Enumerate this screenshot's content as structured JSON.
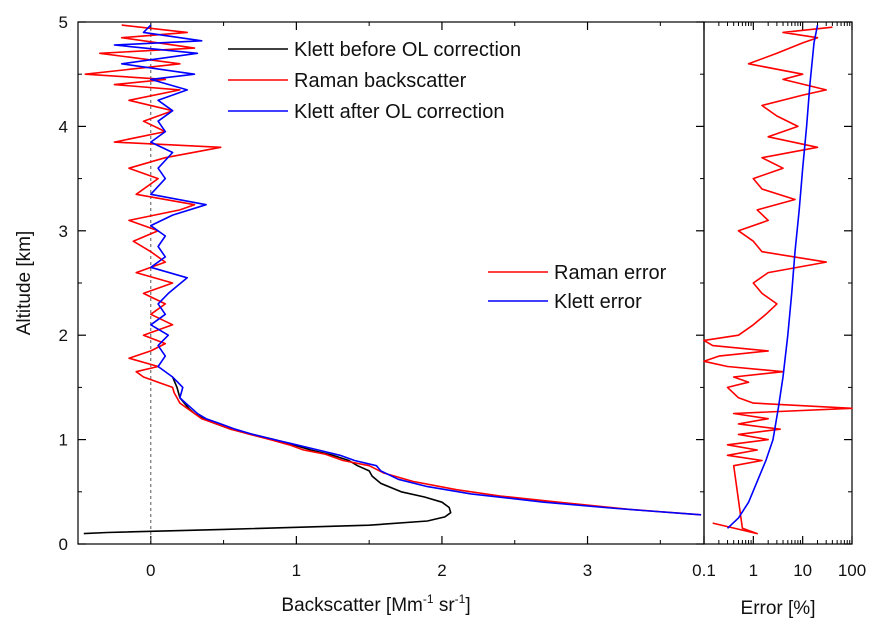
{
  "chart_data": [
    {
      "type": "line",
      "panel": "left",
      "xlabel": "Backscatter [Mm-1 sr-1]",
      "xlabel_parts": {
        "base": "Backscatter [Mm",
        "sup1": "-1",
        "mid": " sr",
        "sup2": "-1",
        "end": "]"
      },
      "ylabel": "Altitude [km]",
      "xlim": [
        -0.5,
        3.8
      ],
      "ylim": [
        0,
        5
      ],
      "x_ticks": [
        0,
        1,
        2,
        3
      ],
      "x_tick_labels": [
        "0",
        "1",
        "2",
        "3"
      ],
      "y_ticks": [
        0,
        1,
        2,
        3,
        4,
        5
      ],
      "y_tick_labels": [
        "0",
        "1",
        "2",
        "3",
        "4",
        "5"
      ],
      "zero_line": "dashed",
      "legend_position": "top-right",
      "series": [
        {
          "name": "Klett before OL correction",
          "color": "#000000",
          "points": [
            [
              -0.46,
              0.1
            ],
            [
              -0.3,
              0.11
            ],
            [
              0.5,
              0.14
            ],
            [
              1.5,
              0.18
            ],
            [
              1.9,
              0.22
            ],
            [
              2.02,
              0.26
            ],
            [
              2.06,
              0.3
            ],
            [
              2.05,
              0.35
            ],
            [
              2.0,
              0.4
            ],
            [
              1.88,
              0.45
            ],
            [
              1.72,
              0.5
            ],
            [
              1.58,
              0.58
            ],
            [
              1.52,
              0.65
            ],
            [
              1.5,
              0.7
            ],
            [
              1.42,
              0.75
            ],
            [
              1.36,
              0.8
            ],
            [
              1.25,
              0.85
            ],
            [
              1.1,
              0.9
            ],
            [
              0.98,
              0.95
            ],
            [
              0.85,
              1.0
            ],
            [
              0.7,
              1.05
            ],
            [
              0.55,
              1.1
            ],
            [
              0.45,
              1.15
            ],
            [
              0.36,
              1.2
            ],
            [
              0.3,
              1.25
            ],
            [
              0.26,
              1.3
            ],
            [
              0.23,
              1.35
            ],
            [
              0.2,
              1.4
            ],
            [
              0.18,
              1.5
            ],
            [
              0.15,
              1.6
            ]
          ]
        },
        {
          "name": "Raman backscatter",
          "color": "#ff0000",
          "points": [
            [
              3.78,
              0.28
            ],
            [
              3.3,
              0.33
            ],
            [
              2.8,
              0.4
            ],
            [
              2.4,
              0.46
            ],
            [
              2.1,
              0.52
            ],
            [
              1.8,
              0.6
            ],
            [
              1.6,
              0.68
            ],
            [
              1.5,
              0.75
            ],
            [
              1.32,
              0.8
            ],
            [
              1.2,
              0.86
            ],
            [
              1.05,
              0.9
            ],
            [
              0.95,
              0.95
            ],
            [
              0.82,
              1.0
            ],
            [
              0.68,
              1.05
            ],
            [
              0.55,
              1.1
            ],
            [
              0.45,
              1.15
            ],
            [
              0.35,
              1.2
            ],
            [
              0.3,
              1.25
            ],
            [
              0.25,
              1.3
            ],
            [
              0.2,
              1.35
            ],
            [
              0.18,
              1.4
            ],
            [
              0.16,
              1.45
            ],
            [
              0.15,
              1.5
            ],
            [
              0.05,
              1.55
            ],
            [
              -0.05,
              1.6
            ],
            [
              -0.1,
              1.65
            ],
            [
              0.05,
              1.7
            ],
            [
              -0.15,
              1.78
            ],
            [
              0.0,
              1.85
            ],
            [
              0.1,
              1.92
            ],
            [
              -0.05,
              2.0
            ],
            [
              0.15,
              2.1
            ],
            [
              0.0,
              2.2
            ],
            [
              0.1,
              2.3
            ],
            [
              -0.05,
              2.4
            ],
            [
              0.15,
              2.5
            ],
            [
              -0.1,
              2.6
            ],
            [
              0.1,
              2.7
            ],
            [
              0.0,
              2.8
            ],
            [
              -0.12,
              2.9
            ],
            [
              0.05,
              3.0
            ],
            [
              -0.15,
              3.1
            ],
            [
              0.2,
              3.2
            ],
            [
              0.3,
              3.25
            ],
            [
              -0.1,
              3.35
            ],
            [
              0.05,
              3.5
            ],
            [
              -0.15,
              3.6
            ],
            [
              0.1,
              3.7
            ],
            [
              0.48,
              3.8
            ],
            [
              -0.25,
              3.85
            ],
            [
              0.1,
              3.95
            ],
            [
              -0.05,
              4.05
            ],
            [
              0.15,
              4.15
            ],
            [
              -0.15,
              4.25
            ],
            [
              0.2,
              4.35
            ],
            [
              -0.25,
              4.4
            ],
            [
              0.1,
              4.45
            ],
            [
              -0.45,
              4.5
            ],
            [
              0.2,
              4.6
            ],
            [
              -0.35,
              4.7
            ],
            [
              0.3,
              4.75
            ],
            [
              -0.2,
              4.85
            ],
            [
              0.25,
              4.9
            ],
            [
              -0.2,
              4.97
            ]
          ]
        },
        {
          "name": "Klett after OL correction",
          "color": "#0000ff",
          "points": [
            [
              3.78,
              0.28
            ],
            [
              3.2,
              0.34
            ],
            [
              2.7,
              0.4
            ],
            [
              2.2,
              0.48
            ],
            [
              1.9,
              0.55
            ],
            [
              1.7,
              0.62
            ],
            [
              1.58,
              0.7
            ],
            [
              1.55,
              0.75
            ],
            [
              1.4,
              0.8
            ],
            [
              1.3,
              0.85
            ],
            [
              1.15,
              0.9
            ],
            [
              1.0,
              0.95
            ],
            [
              0.85,
              1.0
            ],
            [
              0.7,
              1.05
            ],
            [
              0.58,
              1.1
            ],
            [
              0.48,
              1.15
            ],
            [
              0.38,
              1.2
            ],
            [
              0.32,
              1.25
            ],
            [
              0.28,
              1.3
            ],
            [
              0.24,
              1.35
            ],
            [
              0.2,
              1.4
            ],
            [
              0.22,
              1.5
            ],
            [
              0.15,
              1.6
            ],
            [
              0.05,
              1.7
            ],
            [
              0.1,
              1.8
            ],
            [
              0.05,
              1.9
            ],
            [
              0.12,
              2.0
            ],
            [
              0.0,
              2.1
            ],
            [
              0.1,
              2.2
            ],
            [
              0.05,
              2.3
            ],
            [
              0.12,
              2.4
            ],
            [
              0.25,
              2.55
            ],
            [
              0.0,
              2.65
            ],
            [
              0.1,
              2.75
            ],
            [
              0.05,
              2.85
            ],
            [
              0.1,
              2.95
            ],
            [
              0.0,
              3.05
            ],
            [
              0.15,
              3.15
            ],
            [
              0.38,
              3.25
            ],
            [
              0.0,
              3.35
            ],
            [
              0.1,
              3.5
            ],
            [
              0.05,
              3.6
            ],
            [
              0.15,
              3.75
            ],
            [
              0.0,
              3.85
            ],
            [
              0.1,
              3.95
            ],
            [
              0.05,
              4.05
            ],
            [
              0.15,
              4.15
            ],
            [
              0.05,
              4.25
            ],
            [
              0.25,
              4.35
            ],
            [
              0.0,
              4.45
            ],
            [
              0.3,
              4.5
            ],
            [
              -0.2,
              4.6
            ],
            [
              0.32,
              4.7
            ],
            [
              -0.25,
              4.78
            ],
            [
              0.35,
              4.82
            ],
            [
              -0.05,
              4.9
            ],
            [
              0.0,
              4.97
            ]
          ]
        }
      ]
    },
    {
      "type": "line",
      "panel": "right",
      "xlabel": "Error [%]",
      "ylabel": "",
      "xscale": "log",
      "xlim": [
        0.1,
        100
      ],
      "ylim": [
        0,
        5
      ],
      "x_ticks": [
        0.1,
        1,
        10,
        100
      ],
      "x_tick_labels": [
        "0.1",
        "1",
        "10",
        "100"
      ],
      "legend_position": "middle-right",
      "series": [
        {
          "name": "Raman error",
          "color": "#ff0000",
          "points": [
            [
              0.15,
              0.2
            ],
            [
              1.2,
              0.1
            ],
            [
              0.6,
              0.15
            ],
            [
              0.4,
              0.75
            ],
            [
              1.5,
              0.8
            ],
            [
              0.3,
              0.85
            ],
            [
              1.2,
              0.9
            ],
            [
              0.3,
              0.95
            ],
            [
              2.0,
              1.0
            ],
            [
              0.5,
              1.05
            ],
            [
              3.5,
              1.1
            ],
            [
              0.5,
              1.15
            ],
            [
              2.0,
              1.2
            ],
            [
              0.4,
              1.25
            ],
            [
              100,
              1.3
            ],
            [
              1.0,
              1.35
            ],
            [
              0.5,
              1.4
            ],
            [
              0.3,
              1.5
            ],
            [
              0.8,
              1.55
            ],
            [
              0.4,
              1.6
            ],
            [
              4.0,
              1.65
            ],
            [
              0.3,
              1.7
            ],
            [
              0.1,
              1.75
            ],
            [
              0.2,
              1.8
            ],
            [
              2.0,
              1.85
            ],
            [
              0.15,
              1.9
            ],
            [
              0.1,
              1.95
            ],
            [
              0.5,
              2.0
            ],
            [
              1.0,
              2.1
            ],
            [
              1.8,
              2.2
            ],
            [
              3.0,
              2.3
            ],
            [
              1.5,
              2.4
            ],
            [
              1.0,
              2.5
            ],
            [
              2.0,
              2.6
            ],
            [
              30.0,
              2.7
            ],
            [
              1.5,
              2.8
            ],
            [
              1.0,
              2.9
            ],
            [
              0.5,
              3.0
            ],
            [
              2.0,
              3.1
            ],
            [
              1.2,
              3.2
            ],
            [
              7.0,
              3.3
            ],
            [
              1.5,
              3.4
            ],
            [
              1.0,
              3.5
            ],
            [
              4.0,
              3.6
            ],
            [
              1.5,
              3.7
            ],
            [
              20.0,
              3.8
            ],
            [
              2.0,
              3.9
            ],
            [
              8.0,
              4.0
            ],
            [
              3.0,
              4.1
            ],
            [
              1.5,
              4.2
            ],
            [
              10.0,
              4.3
            ],
            [
              30.0,
              4.35
            ],
            [
              4.0,
              4.45
            ],
            [
              10.0,
              4.5
            ],
            [
              0.8,
              4.6
            ],
            [
              3.0,
              4.7
            ],
            [
              10.0,
              4.8
            ],
            [
              20.0,
              4.85
            ],
            [
              4.0,
              4.9
            ],
            [
              40.0,
              4.95
            ]
          ]
        },
        {
          "name": "Klett error",
          "color": "#0000ff",
          "points": [
            [
              0.3,
              0.15
            ],
            [
              0.5,
              0.25
            ],
            [
              0.8,
              0.4
            ],
            [
              1.2,
              0.6
            ],
            [
              1.8,
              0.8
            ],
            [
              2.5,
              1.0
            ],
            [
              3.2,
              1.3
            ],
            [
              4.0,
              1.6
            ],
            [
              5.0,
              2.0
            ],
            [
              6.0,
              2.4
            ],
            [
              7.0,
              2.8
            ],
            [
              8.5,
              3.2
            ],
            [
              10.0,
              3.6
            ],
            [
              12.0,
              4.0
            ],
            [
              14.0,
              4.4
            ],
            [
              17.0,
              4.8
            ],
            [
              20.0,
              4.97
            ]
          ]
        }
      ]
    }
  ]
}
